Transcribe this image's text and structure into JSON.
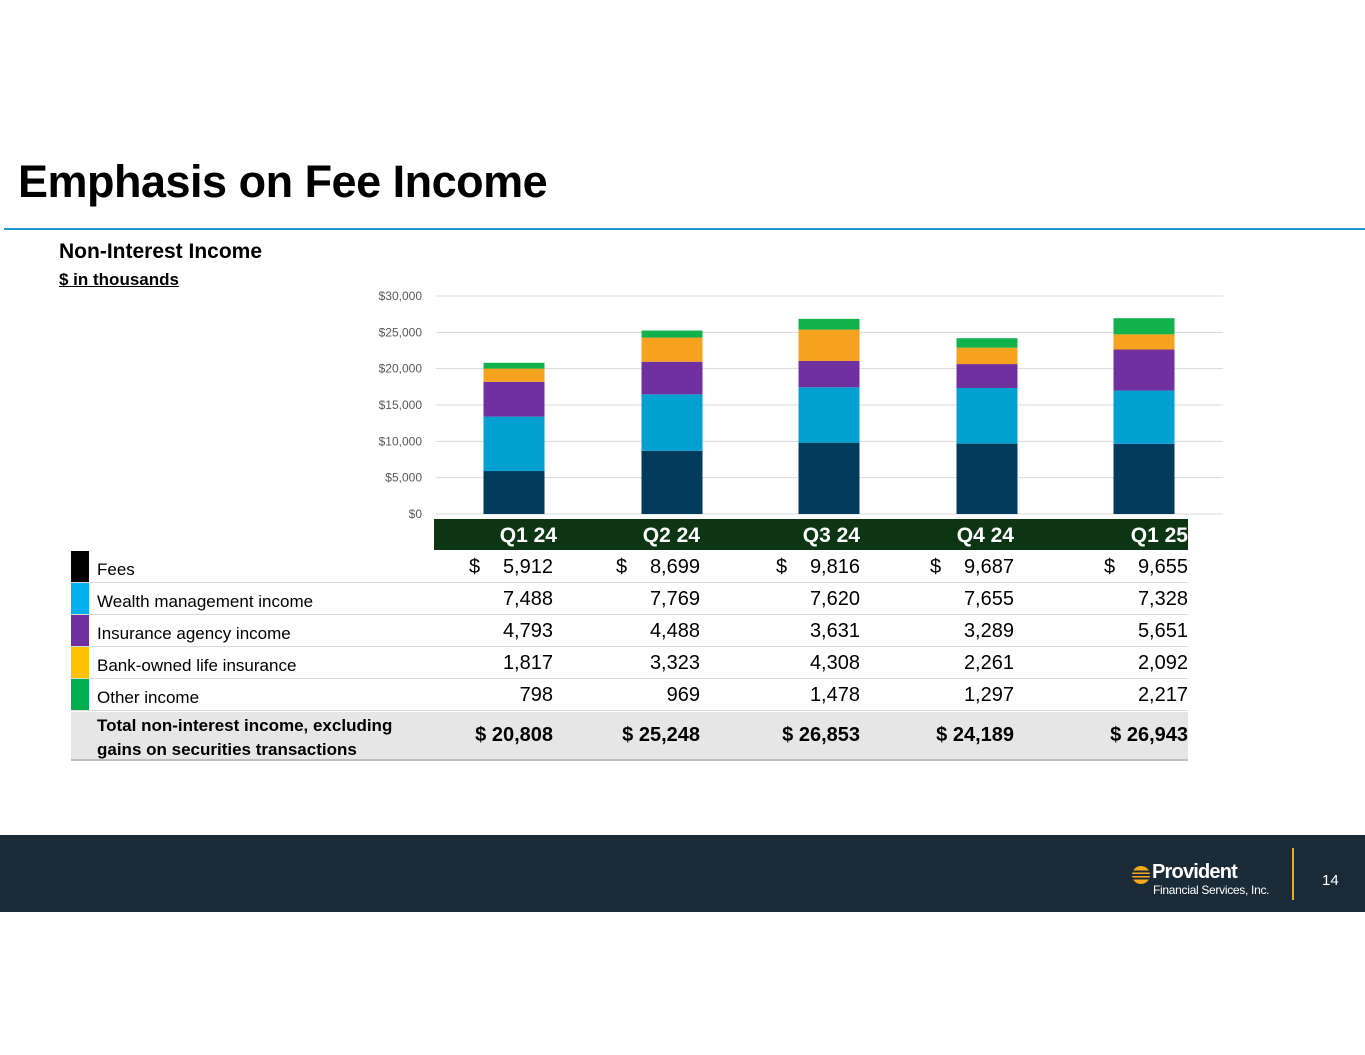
{
  "page": {
    "title": "Emphasis on Fee Income",
    "page_number": "14"
  },
  "section": {
    "subtitle": "Non-Interest Income",
    "units": "$ in thousands"
  },
  "logo": {
    "name": "Provident",
    "sub": "Financial Services, Inc."
  },
  "colors": {
    "fees": "#003b5c",
    "wealth": "#00a0d1",
    "insurance": "#7030a0",
    "boli": "#f5a21f",
    "other": "#11b14b",
    "accent_rule": "#1f95d4",
    "header_bg": "#0c3513",
    "footer_bg": "#1b2a37"
  },
  "chart_data": {
    "type": "bar",
    "stacked": true,
    "categories": [
      "Q1 24",
      "Q2 24",
      "Q3 24",
      "Q4 24",
      "Q1 25"
    ],
    "y_ticks": [
      "$0",
      "$5,000",
      "$10,000",
      "$15,000",
      "$20,000",
      "$25,000",
      "$30,000"
    ],
    "ylim": [
      0,
      30000
    ],
    "series": [
      {
        "name": "Fees",
        "values": [
          5912,
          8699,
          9816,
          9687,
          9655
        ]
      },
      {
        "name": "Wealth management income",
        "values": [
          7488,
          7769,
          7620,
          7655,
          7328
        ]
      },
      {
        "name": "Insurance agency income",
        "values": [
          4793,
          4488,
          3631,
          3289,
          5651
        ]
      },
      {
        "name": "Bank-owned life insurance",
        "values": [
          1817,
          3323,
          4308,
          2261,
          2092
        ]
      },
      {
        "name": "Other income",
        "values": [
          798,
          969,
          1478,
          1297,
          2217
        ]
      }
    ],
    "gridlines": true,
    "legend": "table-below"
  },
  "table": {
    "dollar_sign": "$",
    "rows": [
      {
        "label": "Fees",
        "values": [
          "5,912",
          "8,699",
          "9,816",
          "9,687",
          "9,655"
        ]
      },
      {
        "label": "Wealth management income",
        "values": [
          "7,488",
          "7,769",
          "7,620",
          "7,655",
          "7,328"
        ]
      },
      {
        "label": "Insurance agency income",
        "values": [
          "4,793",
          "4,488",
          "3,631",
          "3,289",
          "5,651"
        ]
      },
      {
        "label": "Bank-owned life insurance",
        "values": [
          "1,817",
          "3,323",
          "4,308",
          "2,261",
          "2,092"
        ]
      },
      {
        "label": "Other income",
        "values": [
          "798",
          "969",
          "1,478",
          "1,297",
          "2,217"
        ]
      }
    ],
    "total": {
      "label": "Total non-interest income, excluding gains on securities transactions",
      "values": [
        "$ 20,808",
        "$ 25,248",
        "$ 26,853",
        "$ 24,189",
        "$ 26,943"
      ]
    }
  }
}
